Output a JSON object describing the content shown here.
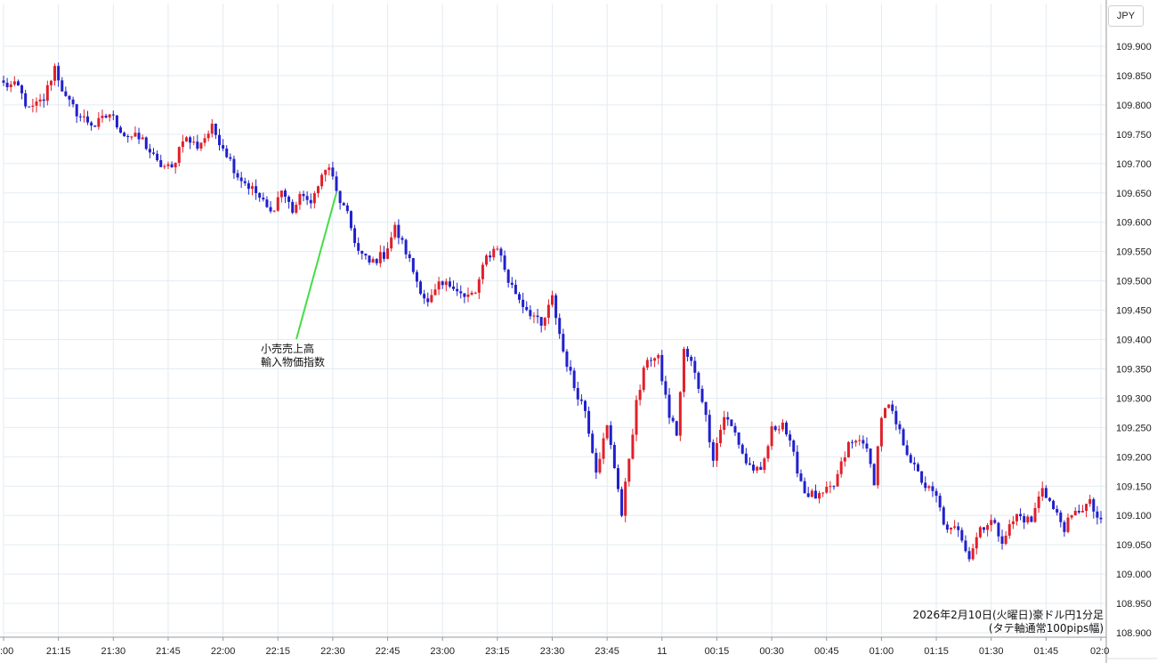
{
  "currency_label": "JPY",
  "caption": {
    "line1": "2026年2月10日(火曜日)豪ドル円1分足",
    "line2": "(タテ軸通常100pips幅)"
  },
  "colors": {
    "up": "#e0202a",
    "down": "#2020cc",
    "grid": "#e3ebf2",
    "annotation_line": "#44dd44",
    "axis": "#999999"
  },
  "chart_data": {
    "type": "candlestick",
    "title": "",
    "xlabel": "",
    "ylabel": "",
    "ylim": [
      108.9,
      109.925
    ],
    "y_ticks": [
      "109.900",
      "109.850",
      "109.800",
      "109.750",
      "109.700",
      "109.650",
      "109.600",
      "109.550",
      "109.500",
      "109.450",
      "109.400",
      "109.350",
      "109.300",
      "109.250",
      "109.200",
      "109.150",
      "109.100",
      "109.050",
      "109.000",
      "108.950",
      "108.900"
    ],
    "x_range": [
      "21:00",
      "02:00"
    ],
    "x_ticks": [
      {
        "t": "21:00",
        "label": ":00"
      },
      {
        "t": "21:15",
        "label": "21:15"
      },
      {
        "t": "21:30",
        "label": "21:30"
      },
      {
        "t": "21:45",
        "label": "21:45"
      },
      {
        "t": "22:00",
        "label": "22:00"
      },
      {
        "t": "22:15",
        "label": "22:15"
      },
      {
        "t": "22:30",
        "label": "22:30"
      },
      {
        "t": "22:45",
        "label": "22:45"
      },
      {
        "t": "23:00",
        "label": "23:00"
      },
      {
        "t": "23:15",
        "label": "23:15"
      },
      {
        "t": "23:30",
        "label": "23:30"
      },
      {
        "t": "23:45",
        "label": "23:45"
      },
      {
        "t": "00:00",
        "label": "11"
      },
      {
        "t": "00:15",
        "label": "00:15"
      },
      {
        "t": "00:30",
        "label": "00:30"
      },
      {
        "t": "00:45",
        "label": "00:45"
      },
      {
        "t": "01:00",
        "label": "01:00"
      },
      {
        "t": "01:15",
        "label": "01:15"
      },
      {
        "t": "01:30",
        "label": "01:30"
      },
      {
        "t": "01:45",
        "label": "01:45"
      },
      {
        "t": "02:00",
        "label": "02:0"
      }
    ],
    "key_points": [
      {
        "t": "21:00",
        "price": 109.835
      },
      {
        "t": "21:04",
        "price": 109.83
      },
      {
        "t": "21:07",
        "price": 109.79
      },
      {
        "t": "21:11",
        "price": 109.81
      },
      {
        "t": "21:14",
        "price": 109.865
      },
      {
        "t": "21:17",
        "price": 109.81
      },
      {
        "t": "21:21",
        "price": 109.78
      },
      {
        "t": "21:25",
        "price": 109.765
      },
      {
        "t": "21:29",
        "price": 109.785
      },
      {
        "t": "21:33",
        "price": 109.75
      },
      {
        "t": "21:38",
        "price": 109.74
      },
      {
        "t": "21:42",
        "price": 109.7
      },
      {
        "t": "21:46",
        "price": 109.69
      },
      {
        "t": "21:49",
        "price": 109.745
      },
      {
        "t": "21:53",
        "price": 109.73
      },
      {
        "t": "21:57",
        "price": 109.76
      },
      {
        "t": "22:00",
        "price": 109.73
      },
      {
        "t": "22:04",
        "price": 109.68
      },
      {
        "t": "22:09",
        "price": 109.65
      },
      {
        "t": "22:13",
        "price": 109.615
      },
      {
        "t": "22:16",
        "price": 109.655
      },
      {
        "t": "22:19",
        "price": 109.62
      },
      {
        "t": "22:22",
        "price": 109.65
      },
      {
        "t": "22:24",
        "price": 109.625
      },
      {
        "t": "22:26",
        "price": 109.67
      },
      {
        "t": "22:29",
        "price": 109.695
      },
      {
        "t": "22:31",
        "price": 109.65
      },
      {
        "t": "22:34",
        "price": 109.61
      },
      {
        "t": "22:37",
        "price": 109.55
      },
      {
        "t": "22:40",
        "price": 109.53
      },
      {
        "t": "22:44",
        "price": 109.545
      },
      {
        "t": "22:47",
        "price": 109.59
      },
      {
        "t": "22:50",
        "price": 109.55
      },
      {
        "t": "22:53",
        "price": 109.5
      },
      {
        "t": "22:56",
        "price": 109.46
      },
      {
        "t": "22:59",
        "price": 109.49
      },
      {
        "t": "23:03",
        "price": 109.495
      },
      {
        "t": "23:06",
        "price": 109.47
      },
      {
        "t": "23:09",
        "price": 109.48
      },
      {
        "t": "23:12",
        "price": 109.54
      },
      {
        "t": "23:15",
        "price": 109.56
      },
      {
        "t": "23:18",
        "price": 109.5
      },
      {
        "t": "23:22",
        "price": 109.46
      },
      {
        "t": "23:25",
        "price": 109.44
      },
      {
        "t": "23:27",
        "price": 109.42
      },
      {
        "t": "23:30",
        "price": 109.47
      },
      {
        "t": "23:33",
        "price": 109.38
      },
      {
        "t": "23:36",
        "price": 109.32
      },
      {
        "t": "23:39",
        "price": 109.28
      },
      {
        "t": "23:42",
        "price": 109.18
      },
      {
        "t": "23:45",
        "price": 109.25
      },
      {
        "t": "23:48",
        "price": 109.15
      },
      {
        "t": "23:49",
        "price": 109.1
      },
      {
        "t": "23:51",
        "price": 109.2
      },
      {
        "t": "23:53",
        "price": 109.29
      },
      {
        "t": "23:56",
        "price": 109.37
      },
      {
        "t": "23:59",
        "price": 109.365
      },
      {
        "t": "00:02",
        "price": 109.27
      },
      {
        "t": "00:04",
        "price": 109.24
      },
      {
        "t": "00:06",
        "price": 109.38
      },
      {
        "t": "00:08",
        "price": 109.36
      },
      {
        "t": "00:11",
        "price": 109.3
      },
      {
        "t": "00:14",
        "price": 109.2
      },
      {
        "t": "00:17",
        "price": 109.27
      },
      {
        "t": "00:20",
        "price": 109.24
      },
      {
        "t": "00:23",
        "price": 109.19
      },
      {
        "t": "00:27",
        "price": 109.17
      },
      {
        "t": "00:30",
        "price": 109.245
      },
      {
        "t": "00:33",
        "price": 109.26
      },
      {
        "t": "00:36",
        "price": 109.2
      },
      {
        "t": "00:39",
        "price": 109.14
      },
      {
        "t": "00:43",
        "price": 109.13
      },
      {
        "t": "00:47",
        "price": 109.15
      },
      {
        "t": "00:51",
        "price": 109.22
      },
      {
        "t": "00:55",
        "price": 109.23
      },
      {
        "t": "00:58",
        "price": 109.16
      },
      {
        "t": "01:00",
        "price": 109.27
      },
      {
        "t": "01:02",
        "price": 109.285
      },
      {
        "t": "01:05",
        "price": 109.24
      },
      {
        "t": "01:09",
        "price": 109.18
      },
      {
        "t": "01:12",
        "price": 109.15
      },
      {
        "t": "01:15",
        "price": 109.13
      },
      {
        "t": "01:18",
        "price": 109.07
      },
      {
        "t": "01:21",
        "price": 109.08
      },
      {
        "t": "01:24",
        "price": 109.03
      },
      {
        "t": "01:27",
        "price": 109.08
      },
      {
        "t": "01:30",
        "price": 109.09
      },
      {
        "t": "01:33",
        "price": 109.06
      },
      {
        "t": "01:37",
        "price": 109.1
      },
      {
        "t": "01:41",
        "price": 109.09
      },
      {
        "t": "01:44",
        "price": 109.15
      },
      {
        "t": "01:47",
        "price": 109.11
      },
      {
        "t": "01:50",
        "price": 109.08
      },
      {
        "t": "01:54",
        "price": 109.11
      },
      {
        "t": "01:57",
        "price": 109.12
      },
      {
        "t": "02:00",
        "price": 109.085
      }
    ],
    "annotation": {
      "t": "22:31",
      "price": 109.65,
      "lines": [
        "小売売上高",
        "輸入物価指数"
      ]
    }
  }
}
